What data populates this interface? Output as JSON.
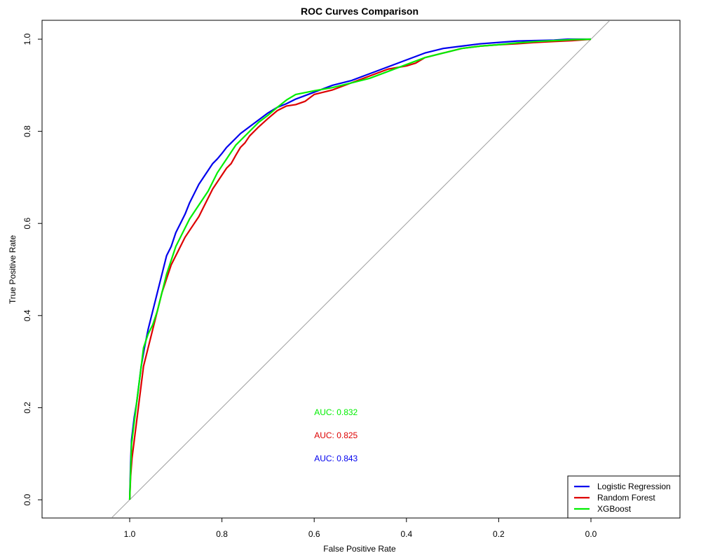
{
  "chart_data": {
    "type": "line",
    "title": "ROC Curves Comparison",
    "xlabel": "False Positive Rate",
    "ylabel": "True Positive Rate",
    "x_reversed": true,
    "xlim": [
      1.0,
      0.0
    ],
    "ylim": [
      0.0,
      1.0
    ],
    "xticks": [
      "1.0",
      "0.8",
      "0.6",
      "0.4",
      "0.2",
      "0.0"
    ],
    "xtick_values": [
      1.0,
      0.8,
      0.6,
      0.4,
      0.2,
      0.0
    ],
    "yticks": [
      "0.0",
      "0.2",
      "0.4",
      "0.6",
      "0.8",
      "1.0"
    ],
    "ytick_values": [
      0.0,
      0.2,
      0.4,
      0.6,
      0.8,
      1.0
    ],
    "grid": false,
    "legend_position": "bottom-right",
    "diagonal_reference": true,
    "diagonal_color": "#a0a0a0",
    "series": [
      {
        "name": "Logistic Regression",
        "color": "#0000ee",
        "x": [
          1.0,
          0.998,
          0.996,
          0.99,
          0.985,
          0.98,
          0.975,
          0.968,
          0.96,
          0.95,
          0.94,
          0.93,
          0.92,
          0.91,
          0.9,
          0.89,
          0.88,
          0.87,
          0.86,
          0.85,
          0.84,
          0.83,
          0.82,
          0.81,
          0.8,
          0.79,
          0.78,
          0.77,
          0.76,
          0.74,
          0.72,
          0.7,
          0.68,
          0.66,
          0.64,
          0.6,
          0.56,
          0.52,
          0.48,
          0.44,
          0.4,
          0.36,
          0.32,
          0.28,
          0.24,
          0.2,
          0.16,
          0.12,
          0.08,
          0.05,
          0.04,
          0.0
        ],
        "y": [
          0.0,
          0.08,
          0.13,
          0.18,
          0.21,
          0.25,
          0.29,
          0.33,
          0.37,
          0.41,
          0.45,
          0.49,
          0.53,
          0.55,
          0.58,
          0.6,
          0.62,
          0.645,
          0.665,
          0.685,
          0.7,
          0.715,
          0.73,
          0.74,
          0.752,
          0.765,
          0.775,
          0.785,
          0.795,
          0.81,
          0.825,
          0.84,
          0.852,
          0.86,
          0.87,
          0.885,
          0.9,
          0.91,
          0.925,
          0.94,
          0.955,
          0.97,
          0.98,
          0.985,
          0.99,
          0.993,
          0.996,
          0.997,
          0.998,
          1.0,
          1.0,
          1.0
        ]
      },
      {
        "name": "Random Forest",
        "color": "#dd0000",
        "x": [
          1.0,
          0.998,
          0.995,
          0.99,
          0.985,
          0.98,
          0.975,
          0.97,
          0.96,
          0.95,
          0.94,
          0.93,
          0.92,
          0.91,
          0.9,
          0.89,
          0.88,
          0.87,
          0.86,
          0.85,
          0.84,
          0.83,
          0.82,
          0.81,
          0.8,
          0.79,
          0.78,
          0.77,
          0.76,
          0.75,
          0.74,
          0.72,
          0.7,
          0.68,
          0.66,
          0.64,
          0.62,
          0.6,
          0.58,
          0.56,
          0.52,
          0.48,
          0.44,
          0.4,
          0.38,
          0.36,
          0.32,
          0.28,
          0.24,
          0.2,
          0.16,
          0.12,
          0.08,
          0.04,
          0.0
        ],
        "y": [
          0.0,
          0.05,
          0.09,
          0.13,
          0.17,
          0.21,
          0.25,
          0.29,
          0.33,
          0.37,
          0.41,
          0.45,
          0.48,
          0.51,
          0.53,
          0.55,
          0.57,
          0.585,
          0.6,
          0.615,
          0.635,
          0.655,
          0.675,
          0.69,
          0.705,
          0.72,
          0.73,
          0.748,
          0.765,
          0.775,
          0.79,
          0.81,
          0.828,
          0.845,
          0.855,
          0.858,
          0.865,
          0.88,
          0.885,
          0.89,
          0.905,
          0.92,
          0.935,
          0.942,
          0.948,
          0.96,
          0.97,
          0.98,
          0.985,
          0.988,
          0.99,
          0.993,
          0.995,
          0.997,
          1.0
        ]
      },
      {
        "name": "XGBoost",
        "color": "#00ee00",
        "x": [
          1.0,
          0.998,
          0.996,
          0.99,
          0.985,
          0.98,
          0.975,
          0.97,
          0.96,
          0.95,
          0.94,
          0.93,
          0.92,
          0.91,
          0.9,
          0.89,
          0.88,
          0.87,
          0.86,
          0.85,
          0.84,
          0.83,
          0.82,
          0.81,
          0.8,
          0.79,
          0.78,
          0.77,
          0.76,
          0.74,
          0.72,
          0.7,
          0.68,
          0.66,
          0.64,
          0.6,
          0.56,
          0.52,
          0.48,
          0.44,
          0.4,
          0.36,
          0.32,
          0.28,
          0.24,
          0.2,
          0.16,
          0.12,
          0.08,
          0.04,
          0.0
        ],
        "y": [
          0.0,
          0.06,
          0.12,
          0.17,
          0.21,
          0.25,
          0.29,
          0.33,
          0.36,
          0.38,
          0.41,
          0.45,
          0.49,
          0.52,
          0.55,
          0.57,
          0.59,
          0.61,
          0.625,
          0.64,
          0.655,
          0.67,
          0.69,
          0.71,
          0.725,
          0.74,
          0.755,
          0.77,
          0.78,
          0.8,
          0.82,
          0.835,
          0.852,
          0.868,
          0.88,
          0.888,
          0.895,
          0.905,
          0.915,
          0.93,
          0.945,
          0.96,
          0.97,
          0.98,
          0.985,
          0.988,
          0.992,
          0.995,
          0.997,
          0.999,
          1.0
        ]
      }
    ],
    "annotations": [
      {
        "text": "AUC: 0.832",
        "color": "#00ee00",
        "x": 0.6,
        "y": 0.19
      },
      {
        "text": "AUC: 0.825",
        "color": "#dd0000",
        "x": 0.6,
        "y": 0.14
      },
      {
        "text": "AUC: 0.843",
        "color": "#0000ee",
        "x": 0.6,
        "y": 0.09
      }
    ]
  }
}
